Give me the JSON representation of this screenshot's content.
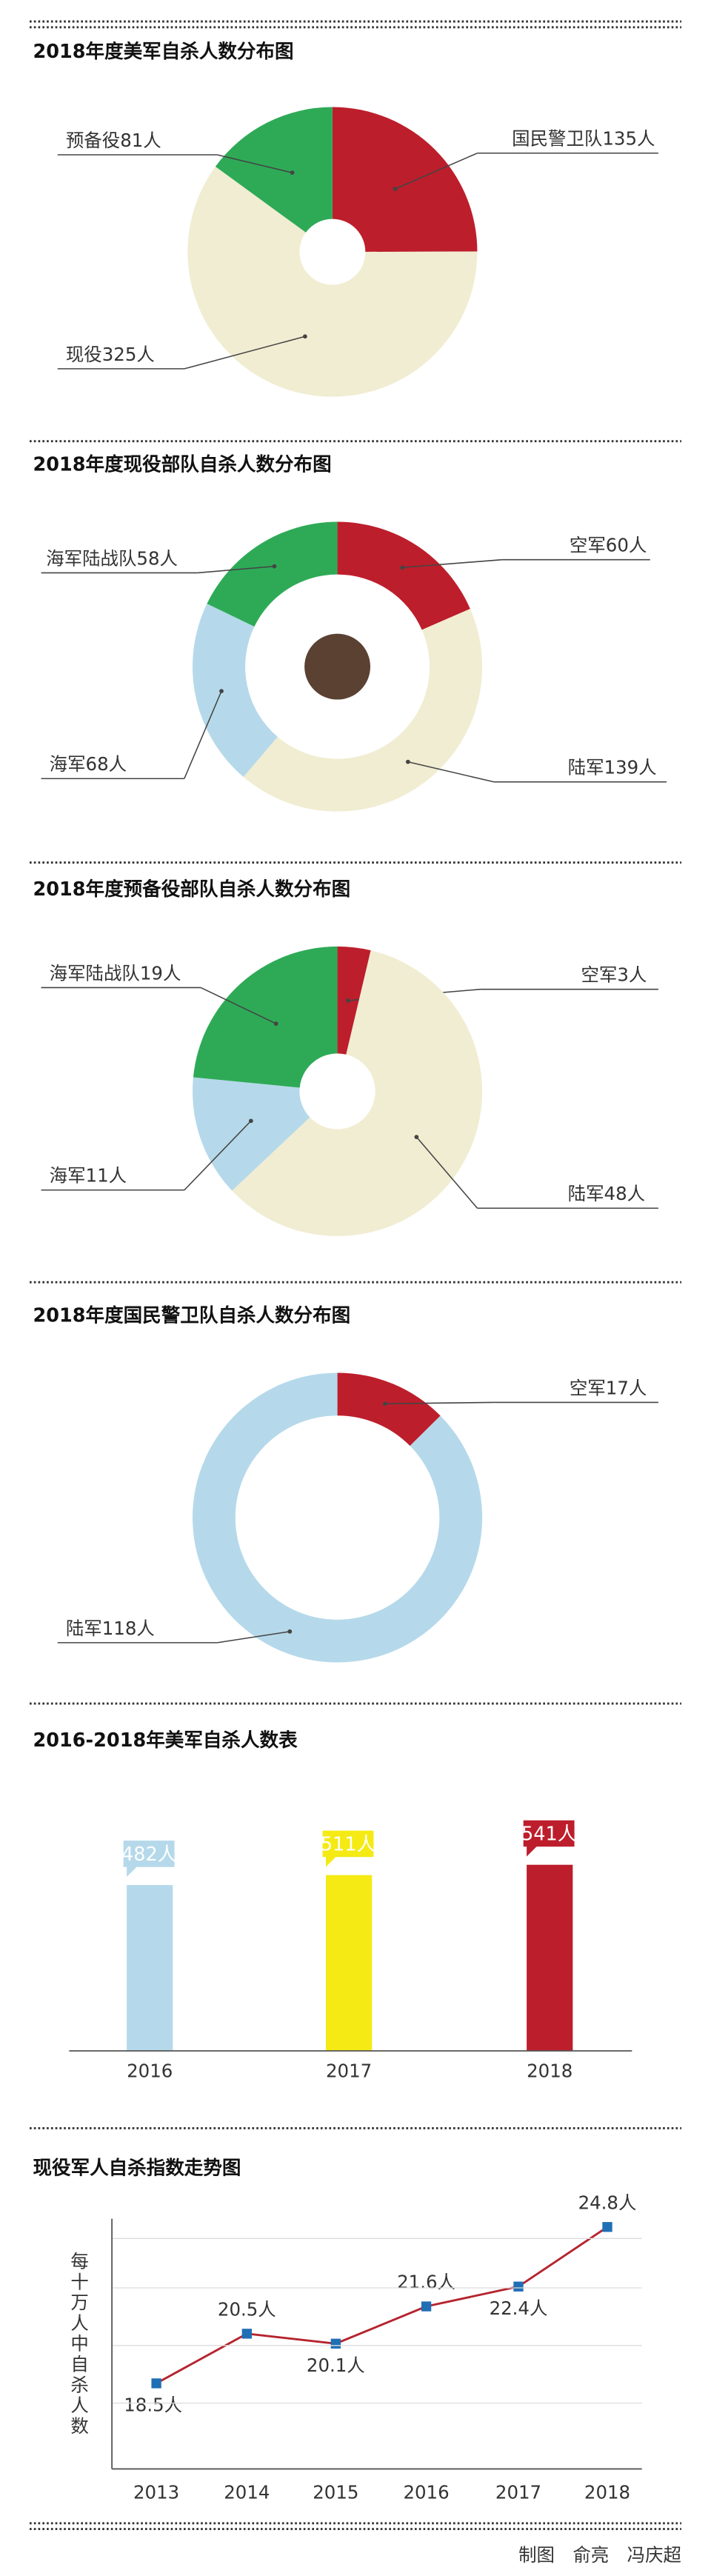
{
  "chart_data": [
    {
      "type": "pie",
      "title": "2018年度美军自杀人数分布图",
      "categories": [
        "国民警卫队",
        "现役",
        "预备役"
      ],
      "values": [
        135,
        325,
        81
      ],
      "value_labels": [
        "135人",
        "325人",
        "81人"
      ],
      "colors": [
        "#bd1e2c",
        "#f1edd2",
        "#2eaa57"
      ]
    },
    {
      "type": "pie",
      "title": "2018年度现役部队自杀人数分布图",
      "categories": [
        "空军",
        "陆军",
        "海军",
        "海军陆战队"
      ],
      "values": [
        60,
        139,
        68,
        58
      ],
      "value_labels": [
        "60人",
        "139人",
        "68人",
        "58人"
      ],
      "colors": [
        "#bd1e2c",
        "#f1edd2",
        "#b5d9ea",
        "#2eaa57"
      ]
    },
    {
      "type": "pie",
      "title": "2018年度预备役部队自杀人数分布图",
      "categories": [
        "空军",
        "陆军",
        "海军",
        "海军陆战队"
      ],
      "values": [
        3,
        48,
        11,
        19
      ],
      "value_labels": [
        "3人",
        "48人",
        "11人",
        "19人"
      ],
      "colors": [
        "#bd1e2c",
        "#f1edd2",
        "#b5d9ea",
        "#2eaa57"
      ]
    },
    {
      "type": "pie",
      "title": "2018年度国民警卫队自杀人数分布图",
      "categories": [
        "空军",
        "陆军"
      ],
      "values": [
        17,
        118
      ],
      "value_labels": [
        "17人",
        "118人"
      ],
      "colors": [
        "#bd1e2c",
        "#b5d9ea"
      ]
    },
    {
      "type": "bar",
      "title": "2016-2018年美军自杀人数表",
      "categories": [
        "2016",
        "2017",
        "2018"
      ],
      "values": [
        482,
        511,
        541
      ],
      "value_labels": [
        "482人",
        "511人",
        "541人"
      ],
      "colors": [
        "#b5d9ea",
        "#f5ea14",
        "#bd1e2c"
      ]
    },
    {
      "type": "line",
      "title": "现役军人自杀指数走势图",
      "y_label": "每十万人中自杀人数",
      "categories": [
        "2013",
        "2014",
        "2015",
        "2016",
        "2017",
        "2018"
      ],
      "values": [
        18.5,
        20.5,
        20.1,
        21.6,
        22.4,
        24.8
      ],
      "value_labels": [
        "18.5人",
        "20.5人",
        "20.1人",
        "21.6人",
        "22.4人",
        "24.8人"
      ],
      "color": "#b5242e",
      "marker_color": "#1f6fb5"
    }
  ],
  "credit": "制图　俞亮　冯庆超"
}
